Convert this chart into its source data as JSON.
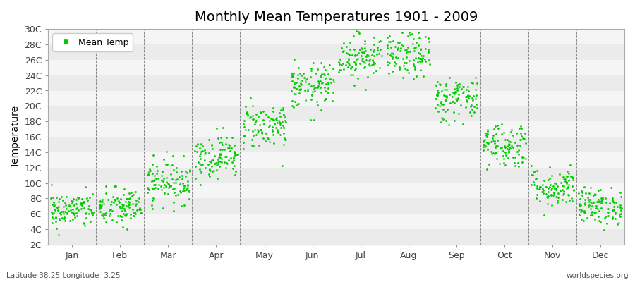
{
  "title": "Monthly Mean Temperatures 1901 - 2009",
  "ylabel": "Temperature",
  "xlabel_bottom_left": "Latitude 38.25 Longitude -3.25",
  "xlabel_bottom_right": "worldspecies.org",
  "ytick_labels": [
    "2C",
    "4C",
    "6C",
    "8C",
    "10C",
    "12C",
    "14C",
    "16C",
    "18C",
    "20C",
    "22C",
    "24C",
    "26C",
    "28C",
    "30C"
  ],
  "ytick_values": [
    2,
    4,
    6,
    8,
    10,
    12,
    14,
    16,
    18,
    20,
    22,
    24,
    26,
    28,
    30
  ],
  "ylim": [
    2,
    30
  ],
  "months": [
    "Jan",
    "Feb",
    "Mar",
    "Apr",
    "May",
    "Jun",
    "Jul",
    "Aug",
    "Sep",
    "Oct",
    "Nov",
    "Dec"
  ],
  "month_positions": [
    0.5,
    1.5,
    2.5,
    3.5,
    4.5,
    5.5,
    6.5,
    7.5,
    8.5,
    9.5,
    10.5,
    11.5
  ],
  "vline_positions": [
    1,
    2,
    3,
    4,
    5,
    6,
    7,
    8,
    9,
    10,
    11
  ],
  "dot_color": "#00CC00",
  "dot_size": 4,
  "background_color": "#ffffff",
  "plot_bg_color": "#ffffff",
  "band_color_light": "#f5f5f5",
  "band_color_dark": "#e8e8e8",
  "legend_label": "Mean Temp",
  "title_fontsize": 14,
  "axis_fontsize": 10,
  "tick_fontsize": 9,
  "monthly_mean_temps": [
    6.5,
    6.8,
    10.2,
    13.5,
    17.5,
    22.5,
    26.5,
    26.5,
    21.0,
    15.0,
    9.5,
    7.0
  ],
  "monthly_std": [
    1.2,
    1.3,
    1.4,
    1.4,
    1.5,
    1.5,
    1.5,
    1.5,
    1.5,
    1.5,
    1.3,
    1.2
  ],
  "n_years": 109
}
